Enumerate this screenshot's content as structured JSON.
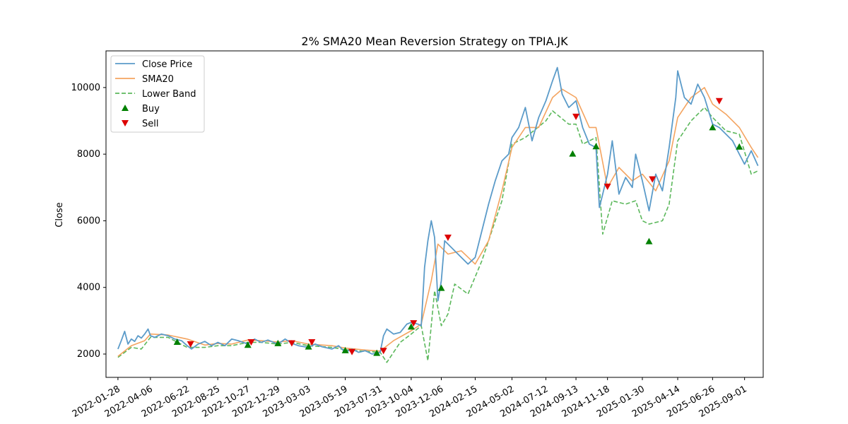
{
  "chart_data": {
    "type": "line",
    "title": "2% SMA20 Mean Reversion Strategy on TPIA.JK",
    "xlabel": "",
    "ylabel": "Close",
    "ylim": [
      1300,
      11100
    ],
    "xlim": [
      "2022-01-03",
      "2025-10-10"
    ],
    "grid": false,
    "legend_position": "top-left",
    "yticks": [
      2000,
      4000,
      6000,
      8000,
      10000
    ],
    "xticks": [
      "2022-01-28",
      "2022-04-06",
      "2022-06-22",
      "2022-08-25",
      "2022-10-27",
      "2022-12-29",
      "2023-03-03",
      "2023-05-19",
      "2023-07-31",
      "2023-10-04",
      "2023-12-06",
      "2024-02-15",
      "2024-05-02",
      "2024-07-12",
      "2024-09-13",
      "2024-11-18",
      "2025-01-30",
      "2025-04-14",
      "2025-06-26",
      "2025-09-01"
    ],
    "colors": {
      "close": "#5b9bc9",
      "sma": "#f4a460",
      "lower": "#5cb85c",
      "buy": "#008000",
      "sell": "#dd0000"
    },
    "series": [
      {
        "name": "Close Price",
        "style": "solid",
        "points": [
          [
            "2022-01-28",
            2150
          ],
          [
            "2022-02-04",
            2400
          ],
          [
            "2022-02-11",
            2680
          ],
          [
            "2022-02-18",
            2300
          ],
          [
            "2022-02-25",
            2450
          ],
          [
            "2022-03-04",
            2380
          ],
          [
            "2022-03-11",
            2550
          ],
          [
            "2022-03-18",
            2480
          ],
          [
            "2022-03-25",
            2600
          ],
          [
            "2022-04-01",
            2750
          ],
          [
            "2022-04-06",
            2550
          ],
          [
            "2022-04-15",
            2500
          ],
          [
            "2022-04-29",
            2600
          ],
          [
            "2022-05-13",
            2550
          ],
          [
            "2022-05-27",
            2450
          ],
          [
            "2022-06-10",
            2400
          ],
          [
            "2022-06-22",
            2250
          ],
          [
            "2022-07-01",
            2150
          ],
          [
            "2022-07-15",
            2300
          ],
          [
            "2022-07-29",
            2380
          ],
          [
            "2022-08-12",
            2250
          ],
          [
            "2022-08-25",
            2350
          ],
          [
            "2022-09-09",
            2250
          ],
          [
            "2022-09-23",
            2450
          ],
          [
            "2022-10-07",
            2400
          ],
          [
            "2022-10-27",
            2300
          ],
          [
            "2022-11-10",
            2450
          ],
          [
            "2022-11-24",
            2350
          ],
          [
            "2022-12-08",
            2420
          ],
          [
            "2022-12-29",
            2300
          ],
          [
            "2023-01-13",
            2450
          ],
          [
            "2023-01-27",
            2320
          ],
          [
            "2023-02-10",
            2250
          ],
          [
            "2023-03-03",
            2200
          ],
          [
            "2023-03-17",
            2300
          ],
          [
            "2023-03-31",
            2220
          ],
          [
            "2023-04-21",
            2150
          ],
          [
            "2023-05-05",
            2250
          ],
          [
            "2023-05-19",
            2050
          ],
          [
            "2023-06-02",
            2150
          ],
          [
            "2023-06-16",
            2050
          ],
          [
            "2023-06-30",
            2100
          ],
          [
            "2023-07-14",
            2000
          ],
          [
            "2023-07-31",
            2050
          ],
          [
            "2023-08-07",
            2550
          ],
          [
            "2023-08-14",
            2750
          ],
          [
            "2023-08-28",
            2600
          ],
          [
            "2023-09-11",
            2650
          ],
          [
            "2023-09-25",
            2900
          ],
          [
            "2023-10-04",
            2950
          ],
          [
            "2023-10-18",
            2900
          ],
          [
            "2023-10-25",
            2850
          ],
          [
            "2023-11-01",
            4600
          ],
          [
            "2023-11-08",
            5400
          ],
          [
            "2023-11-15",
            6000
          ],
          [
            "2023-11-22",
            5500
          ],
          [
            "2023-11-29",
            3600
          ],
          [
            "2023-12-06",
            4200
          ],
          [
            "2023-12-13",
            5400
          ],
          [
            "2023-12-20",
            5300
          ],
          [
            "2024-01-03",
            5100
          ],
          [
            "2024-01-17",
            4900
          ],
          [
            "2024-01-31",
            4700
          ],
          [
            "2024-02-15",
            4900
          ],
          [
            "2024-02-29",
            5700
          ],
          [
            "2024-03-14",
            6500
          ],
          [
            "2024-03-28",
            7200
          ],
          [
            "2024-04-11",
            7800
          ],
          [
            "2024-04-25",
            8000
          ],
          [
            "2024-05-02",
            8500
          ],
          [
            "2024-05-16",
            8800
          ],
          [
            "2024-05-30",
            9400
          ],
          [
            "2024-06-13",
            8400
          ],
          [
            "2024-06-27",
            9100
          ],
          [
            "2024-07-12",
            9600
          ],
          [
            "2024-07-26",
            10200
          ],
          [
            "2024-08-05",
            10600
          ],
          [
            "2024-08-15",
            9800
          ],
          [
            "2024-08-29",
            9400
          ],
          [
            "2024-09-13",
            9600
          ],
          [
            "2024-09-27",
            8800
          ],
          [
            "2024-10-11",
            8300
          ],
          [
            "2024-10-25",
            8200
          ],
          [
            "2024-11-01",
            6400
          ],
          [
            "2024-11-08",
            6800
          ],
          [
            "2024-11-18",
            7400
          ],
          [
            "2024-11-28",
            8400
          ],
          [
            "2024-12-12",
            6800
          ],
          [
            "2024-12-26",
            7300
          ],
          [
            "2025-01-09",
            7000
          ],
          [
            "2025-01-16",
            8000
          ],
          [
            "2025-01-30",
            7200
          ],
          [
            "2025-02-13",
            6300
          ],
          [
            "2025-02-27",
            7400
          ],
          [
            "2025-03-13",
            6900
          ],
          [
            "2025-03-27",
            8200
          ],
          [
            "2025-04-10",
            9700
          ],
          [
            "2025-04-14",
            10500
          ],
          [
            "2025-04-28",
            9700
          ],
          [
            "2025-05-12",
            9500
          ],
          [
            "2025-05-26",
            10100
          ],
          [
            "2025-06-09",
            9700
          ],
          [
            "2025-06-26",
            8900
          ],
          [
            "2025-07-10",
            8800
          ],
          [
            "2025-07-24",
            8600
          ],
          [
            "2025-08-07",
            8400
          ],
          [
            "2025-08-21",
            8000
          ],
          [
            "2025-09-01",
            7700
          ],
          [
            "2025-09-15",
            8100
          ],
          [
            "2025-09-29",
            7650
          ]
        ]
      },
      {
        "name": "SMA20",
        "style": "solid",
        "points": [
          [
            "2022-01-28",
            1930
          ],
          [
            "2022-02-25",
            2250
          ],
          [
            "2022-03-25",
            2400
          ],
          [
            "2022-04-06",
            2600
          ],
          [
            "2022-05-13",
            2570
          ],
          [
            "2022-06-22",
            2450
          ],
          [
            "2022-07-29",
            2270
          ],
          [
            "2022-08-25",
            2320
          ],
          [
            "2022-09-23",
            2300
          ],
          [
            "2022-10-27",
            2420
          ],
          [
            "2022-11-24",
            2400
          ],
          [
            "2022-12-29",
            2360
          ],
          [
            "2023-01-27",
            2400
          ],
          [
            "2023-03-03",
            2300
          ],
          [
            "2023-04-21",
            2250
          ],
          [
            "2023-05-19",
            2180
          ],
          [
            "2023-06-30",
            2120
          ],
          [
            "2023-07-31",
            2090
          ],
          [
            "2023-08-28",
            2400
          ],
          [
            "2023-10-04",
            2700
          ],
          [
            "2023-10-25",
            2900
          ],
          [
            "2023-11-15",
            4200
          ],
          [
            "2023-11-29",
            5300
          ],
          [
            "2023-12-20",
            5000
          ],
          [
            "2024-01-17",
            5100
          ],
          [
            "2024-02-15",
            4700
          ],
          [
            "2024-03-14",
            5400
          ],
          [
            "2024-04-11",
            6900
          ],
          [
            "2024-05-02",
            8200
          ],
          [
            "2024-05-30",
            8800
          ],
          [
            "2024-06-27",
            8800
          ],
          [
            "2024-07-26",
            9700
          ],
          [
            "2024-08-15",
            9950
          ],
          [
            "2024-09-13",
            9700
          ],
          [
            "2024-10-11",
            8800
          ],
          [
            "2024-10-25",
            8800
          ],
          [
            "2024-11-18",
            7000
          ],
          [
            "2024-12-12",
            7600
          ],
          [
            "2025-01-09",
            7200
          ],
          [
            "2025-01-30",
            7400
          ],
          [
            "2025-02-27",
            6900
          ],
          [
            "2025-03-27",
            7800
          ],
          [
            "2025-04-14",
            9100
          ],
          [
            "2025-05-12",
            9700
          ],
          [
            "2025-06-09",
            10000
          ],
          [
            "2025-06-26",
            9500
          ],
          [
            "2025-07-24",
            9200
          ],
          [
            "2025-08-21",
            8800
          ],
          [
            "2025-09-15",
            8200
          ],
          [
            "2025-09-29",
            7900
          ]
        ]
      },
      {
        "name": "Lower Band",
        "style": "dashed",
        "points": [
          [
            "2022-01-28",
            1900
          ],
          [
            "2022-02-25",
            2200
          ],
          [
            "2022-03-18",
            2150
          ],
          [
            "2022-04-06",
            2500
          ],
          [
            "2022-05-13",
            2500
          ],
          [
            "2022-06-22",
            2200
          ],
          [
            "2022-07-29",
            2200
          ],
          [
            "2022-08-25",
            2250
          ],
          [
            "2022-09-23",
            2250
          ],
          [
            "2022-10-27",
            2350
          ],
          [
            "2022-11-24",
            2350
          ],
          [
            "2022-12-29",
            2300
          ],
          [
            "2023-01-27",
            2350
          ],
          [
            "2023-03-03",
            2250
          ],
          [
            "2023-04-21",
            2200
          ],
          [
            "2023-05-19",
            2130
          ],
          [
            "2023-06-30",
            2080
          ],
          [
            "2023-07-31",
            2050
          ],
          [
            "2023-08-14",
            1750
          ],
          [
            "2023-09-11",
            2350
          ],
          [
            "2023-10-04",
            2600
          ],
          [
            "2023-10-25",
            2850
          ],
          [
            "2023-11-08",
            1800
          ],
          [
            "2023-11-22",
            3900
          ],
          [
            "2023-12-06",
            2850
          ],
          [
            "2023-12-20",
            3200
          ],
          [
            "2024-01-03",
            4100
          ],
          [
            "2024-01-31",
            3800
          ],
          [
            "2024-02-29",
            4800
          ],
          [
            "2024-04-11",
            6600
          ],
          [
            "2024-05-02",
            8300
          ],
          [
            "2024-05-30",
            8500
          ],
          [
            "2024-07-12",
            9000
          ],
          [
            "2024-07-26",
            9300
          ],
          [
            "2024-08-29",
            8900
          ],
          [
            "2024-09-13",
            8900
          ],
          [
            "2024-09-27",
            8300
          ],
          [
            "2024-10-25",
            8500
          ],
          [
            "2024-11-08",
            5600
          ],
          [
            "2024-11-28",
            6600
          ],
          [
            "2024-12-26",
            6500
          ],
          [
            "2025-01-16",
            6600
          ],
          [
            "2025-01-30",
            6000
          ],
          [
            "2025-02-13",
            5900
          ],
          [
            "2025-03-13",
            6000
          ],
          [
            "2025-03-27",
            6500
          ],
          [
            "2025-04-14",
            8400
          ],
          [
            "2025-05-12",
            9000
          ],
          [
            "2025-06-09",
            9400
          ],
          [
            "2025-06-26",
            9100
          ],
          [
            "2025-07-24",
            8700
          ],
          [
            "2025-08-21",
            8600
          ],
          [
            "2025-09-15",
            7400
          ],
          [
            "2025-09-29",
            7500
          ]
        ]
      }
    ],
    "buy": [
      [
        "2022-06-01",
        2360
      ],
      [
        "2022-10-27",
        2270
      ],
      [
        "2022-12-29",
        2320
      ],
      [
        "2023-03-03",
        2220
      ],
      [
        "2023-05-19",
        2110
      ],
      [
        "2023-07-24",
        2030
      ],
      [
        "2023-10-04",
        2820
      ],
      [
        "2023-12-06",
        3980
      ],
      [
        "2024-09-06",
        8010
      ],
      [
        "2024-10-25",
        8230
      ],
      [
        "2025-02-13",
        5380
      ],
      [
        "2025-06-26",
        8800
      ],
      [
        "2025-08-21",
        8220
      ]
    ],
    "sell": [
      [
        "2022-06-29",
        2300
      ],
      [
        "2022-11-03",
        2360
      ],
      [
        "2023-01-27",
        2330
      ],
      [
        "2023-03-10",
        2360
      ],
      [
        "2023-06-02",
        2070
      ],
      [
        "2023-08-07",
        2100
      ],
      [
        "2023-10-09",
        2930
      ],
      [
        "2023-12-20",
        5500
      ],
      [
        "2024-09-13",
        9130
      ],
      [
        "2024-11-18",
        7030
      ],
      [
        "2025-02-20",
        7250
      ],
      [
        "2025-07-10",
        9600
      ]
    ],
    "legend": [
      {
        "label": "Close Price",
        "kind": "line"
      },
      {
        "label": "SMA20",
        "kind": "line"
      },
      {
        "label": "Lower Band",
        "kind": "dashed"
      },
      {
        "label": "Buy",
        "kind": "buy"
      },
      {
        "label": "Sell",
        "kind": "sell"
      }
    ]
  }
}
